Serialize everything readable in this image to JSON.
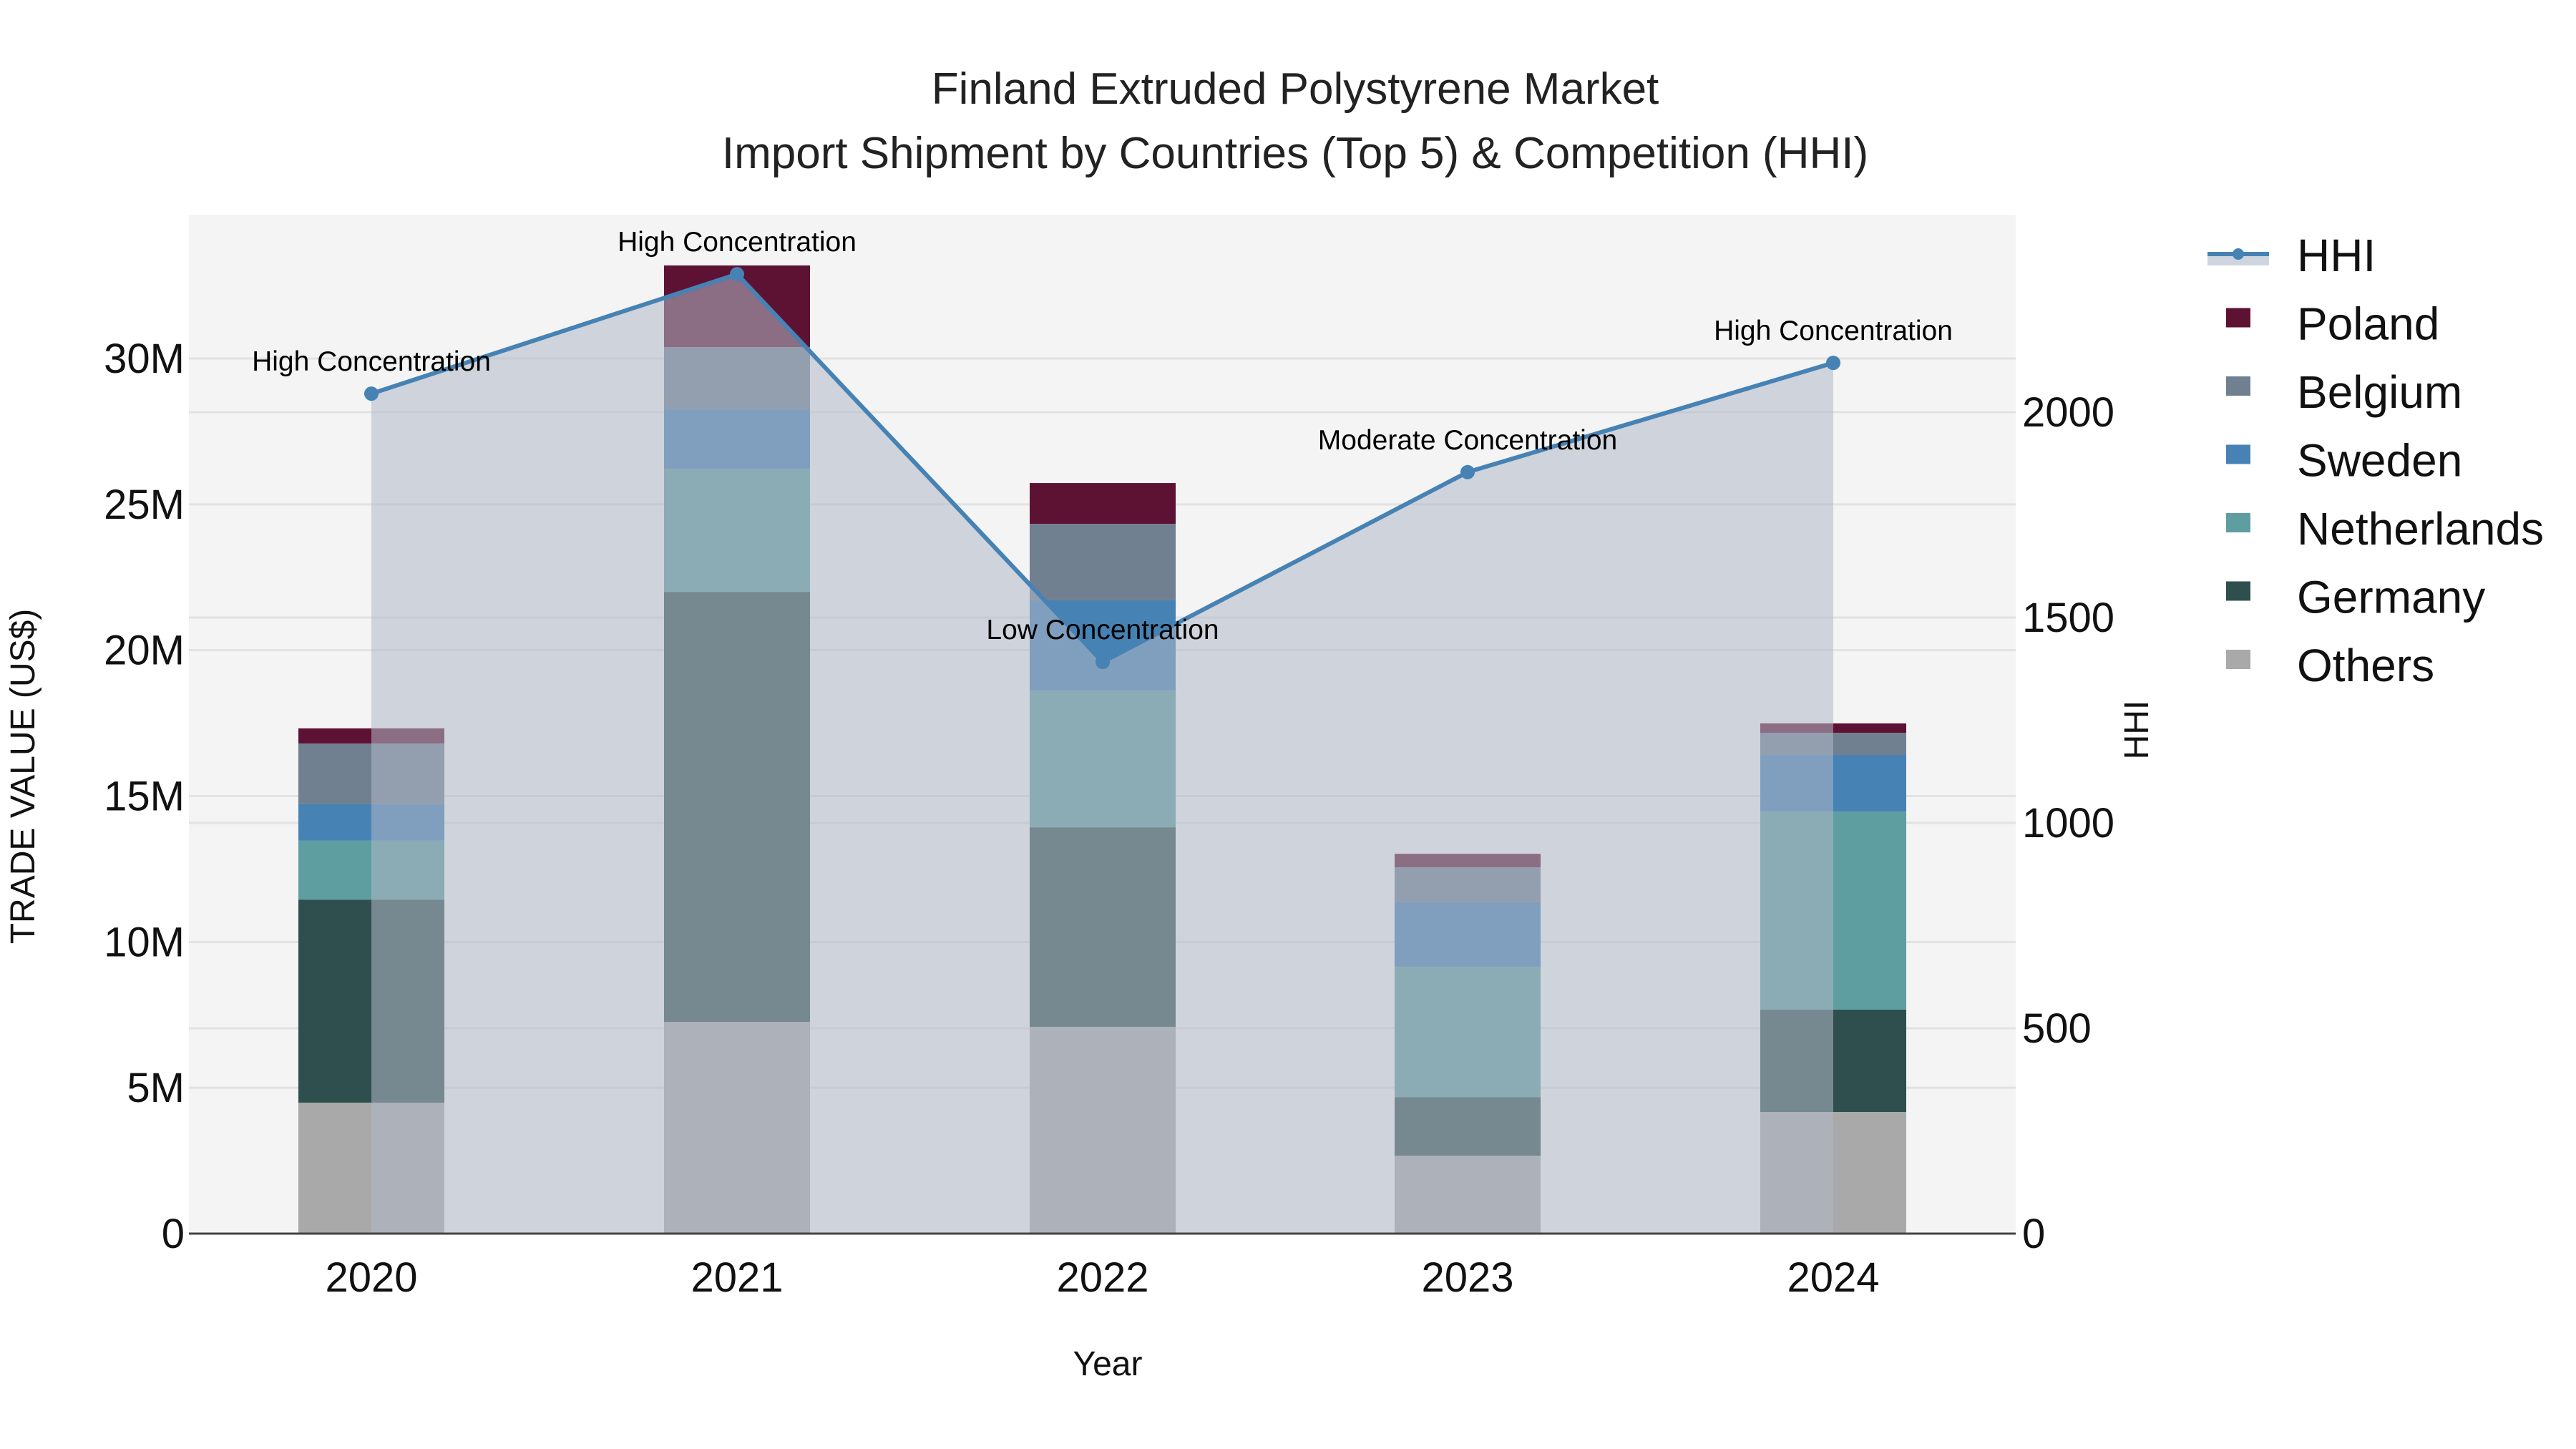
{
  "title": {
    "line1": "Finland Extruded Polystyrene Market",
    "line2": "Import Shipment by Countries (Top 5) & Competition (HHI)"
  },
  "axes": {
    "x_title": "Year",
    "y_left_title": "TRADE VALUE (US$)",
    "y_right_title": "HHI",
    "y_left_ticks": [
      "0",
      "5M",
      "10M",
      "15M",
      "20M",
      "25M",
      "30M"
    ],
    "y_right_ticks": [
      "0",
      "500",
      "1000",
      "1500",
      "2000"
    ]
  },
  "legend": {
    "items": [
      {
        "label": "HHI",
        "color": "#4682B4",
        "kind": "line"
      },
      {
        "label": "Poland",
        "color": "#5E1233",
        "kind": "box"
      },
      {
        "label": "Belgium",
        "color": "#708090",
        "kind": "box"
      },
      {
        "label": "Sweden",
        "color": "#4682B4",
        "kind": "box"
      },
      {
        "label": "Netherlands",
        "color": "#5F9EA0",
        "kind": "box"
      },
      {
        "label": "Germany",
        "color": "#2F4F4F",
        "kind": "box"
      },
      {
        "label": "Others",
        "color": "#A9A9A9",
        "kind": "box"
      }
    ]
  },
  "chart_data": {
    "type": "bar",
    "subtype": "stacked bar with line overlay (secondary axis)",
    "title": "Finland Extruded Polystyrene Market — Import Shipment by Countries (Top 5) & Competition (HHI)",
    "xlabel": "Year",
    "ylabel": "TRADE VALUE (US$)",
    "y2label": "HHI",
    "categories": [
      "2020",
      "2021",
      "2022",
      "2023",
      "2024"
    ],
    "ylim": [
      0,
      34800000
    ],
    "y2lim": [
      0,
      2480
    ],
    "grid": true,
    "legend_position": "right",
    "series": [
      {
        "name": "Others",
        "type": "bar",
        "color": "#A9A9A9",
        "values": [
          4490000,
          7260000,
          7090000,
          2670000,
          4170000
        ]
      },
      {
        "name": "Germany",
        "type": "bar",
        "color": "#2F4F4F",
        "values": [
          6960000,
          14740000,
          6840000,
          2010000,
          3510000
        ]
      },
      {
        "name": "Netherlands",
        "type": "bar",
        "color": "#5F9EA0",
        "values": [
          2020000,
          4220000,
          4690000,
          4470000,
          6790000
        ]
      },
      {
        "name": "Sweden",
        "type": "bar",
        "color": "#4682B4",
        "values": [
          1250000,
          2040000,
          3090000,
          2210000,
          1940000
        ]
      },
      {
        "name": "Belgium",
        "type": "bar",
        "color": "#708090",
        "values": [
          2080000,
          2130000,
          2620000,
          1200000,
          760000
        ]
      },
      {
        "name": "Poland",
        "type": "bar",
        "color": "#5E1233",
        "values": [
          520000,
          2800000,
          1400000,
          460000,
          320000
        ]
      },
      {
        "name": "HHI",
        "type": "line",
        "axis": "y2",
        "color": "#4682B4",
        "fill": "tozeroy",
        "values": [
          2045,
          2336,
          1392,
          1854,
          2120
        ]
      }
    ],
    "totals": [
      17320000,
      33190000,
      25730000,
      13020000,
      17490000
    ],
    "annotations": [
      {
        "x": "2020",
        "text": "High Concentration"
      },
      {
        "x": "2021",
        "text": "High Concentration"
      },
      {
        "x": "2022",
        "text": "Low Concentration"
      },
      {
        "x": "2023",
        "text": "Moderate Concentration"
      },
      {
        "x": "2024",
        "text": "High Concentration"
      }
    ]
  }
}
